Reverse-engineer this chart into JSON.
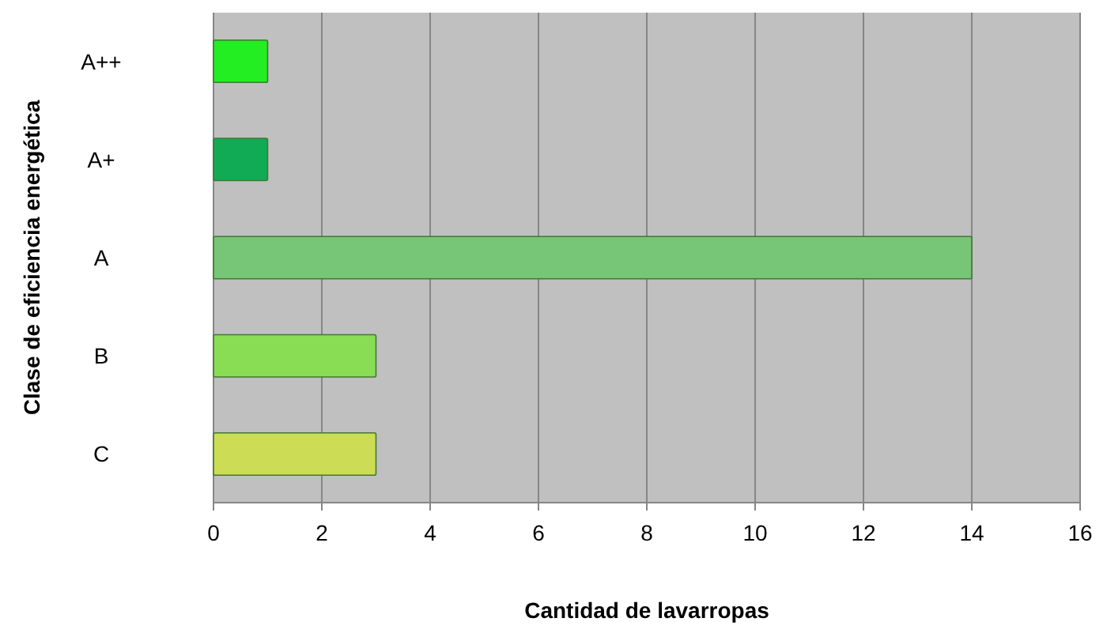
{
  "chart_data": {
    "type": "bar",
    "orientation": "horizontal",
    "categories": [
      "A++",
      "A+",
      "A",
      "B",
      "C"
    ],
    "values": [
      1,
      1,
      14,
      3,
      3
    ],
    "colors": [
      "#22ee22",
      "#11aa55",
      "#77c577",
      "#88dd55",
      "#ccdd55"
    ],
    "xlim": [
      0,
      16
    ],
    "xticks": [
      0,
      2,
      4,
      6,
      8,
      10,
      12,
      14,
      16
    ],
    "xlabel": "Cantidad de lavarropas",
    "ylabel": "Clase de eficiencia energética",
    "grid": "x"
  }
}
